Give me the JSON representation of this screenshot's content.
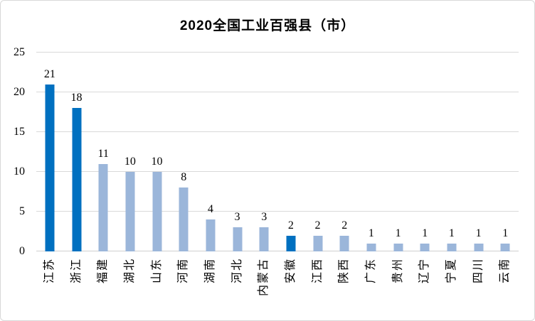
{
  "title": "2020全国工业百强县（市）",
  "colors": {
    "bar_default": "#9bb6da",
    "bar_highlight": "#0070c0",
    "gridline": "#d9d9d9",
    "axis_line": "#cfcfcf",
    "text": "#000000"
  },
  "chart_data": {
    "type": "bar",
    "title": "2020全国工业百强县（市）",
    "categories": [
      "江苏",
      "浙江",
      "福建",
      "湖北",
      "山东",
      "河南",
      "湖南",
      "河北",
      "内蒙古",
      "安徽",
      "江西",
      "陕西",
      "广东",
      "贵州",
      "辽宁",
      "宁夏",
      "四川",
      "云南"
    ],
    "values": [
      21,
      18,
      11,
      10,
      10,
      8,
      4,
      3,
      3,
      2,
      2,
      2,
      1,
      1,
      1,
      1,
      1,
      1
    ],
    "highlighted_categories": [
      "江苏",
      "浙江",
      "安徽"
    ],
    "value_labels_shown": true,
    "xlabel": "",
    "ylabel": "",
    "ylim": [
      0,
      25
    ],
    "yticks": [
      0,
      5,
      10,
      15,
      20,
      25
    ],
    "grid": true,
    "legend": "none",
    "x_label_rotation_deg": -90
  }
}
